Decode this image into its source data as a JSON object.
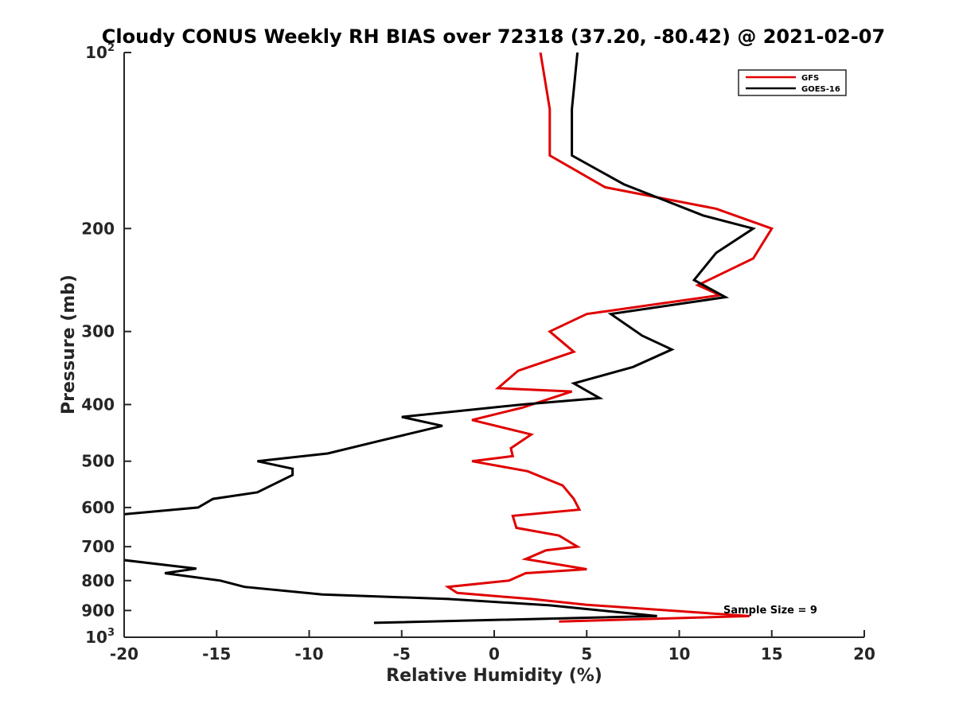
{
  "chart_data": {
    "type": "line",
    "title": "Cloudy CONUS Weekly RH BIAS over 72318 (37.20, -80.42) @ 2021-02-07",
    "xlabel": "Relative Humidity (%)",
    "ylabel": "Pressure (mb)",
    "xlim": [
      -20,
      20
    ],
    "ylim": [
      100,
      1000
    ],
    "yscale": "log",
    "yreverse": true,
    "x_ticks": [
      {
        "value": -20,
        "label": "-20"
      },
      {
        "value": -15,
        "label": "-15"
      },
      {
        "value": -10,
        "label": "-10"
      },
      {
        "value": -5,
        "label": "-5"
      },
      {
        "value": 0,
        "label": "0"
      },
      {
        "value": 5,
        "label": "5"
      },
      {
        "value": 10,
        "label": "10"
      },
      {
        "value": 15,
        "label": "15"
      },
      {
        "value": 20,
        "label": "20"
      }
    ],
    "y_ticks": [
      {
        "value": 100,
        "base": "10",
        "exp": "2"
      },
      {
        "value": 200,
        "base": "200",
        "exp": ""
      },
      {
        "value": 300,
        "base": "300",
        "exp": ""
      },
      {
        "value": 400,
        "base": "400",
        "exp": ""
      },
      {
        "value": 500,
        "base": "500",
        "exp": ""
      },
      {
        "value": 600,
        "base": "600",
        "exp": ""
      },
      {
        "value": 700,
        "base": "700",
        "exp": ""
      },
      {
        "value": 800,
        "base": "800",
        "exp": ""
      },
      {
        "value": 900,
        "base": "900",
        "exp": ""
      },
      {
        "value": 1000,
        "base": "10",
        "exp": "3"
      }
    ],
    "series": [
      {
        "name": "GFS",
        "color": "#e00000",
        "points": [
          {
            "x": 2.5,
            "p": 100
          },
          {
            "x": 3.0,
            "p": 125
          },
          {
            "x": 3.0,
            "p": 150
          },
          {
            "x": 6.0,
            "p": 170
          },
          {
            "x": 12.0,
            "p": 185
          },
          {
            "x": 15.0,
            "p": 200
          },
          {
            "x": 14.0,
            "p": 225
          },
          {
            "x": 11.0,
            "p": 250
          },
          {
            "x": 12.2,
            "p": 260
          },
          {
            "x": 5.0,
            "p": 280
          },
          {
            "x": 3.0,
            "p": 300
          },
          {
            "x": 4.3,
            "p": 325
          },
          {
            "x": 1.3,
            "p": 350
          },
          {
            "x": 0.2,
            "p": 375
          },
          {
            "x": 4.2,
            "p": 380
          },
          {
            "x": 1.5,
            "p": 405
          },
          {
            "x": -1.2,
            "p": 425
          },
          {
            "x": 2.0,
            "p": 450
          },
          {
            "x": 0.9,
            "p": 475
          },
          {
            "x": 1.0,
            "p": 490
          },
          {
            "x": -1.2,
            "p": 500
          },
          {
            "x": 1.8,
            "p": 520
          },
          {
            "x": 3.7,
            "p": 550
          },
          {
            "x": 4.3,
            "p": 580
          },
          {
            "x": 4.6,
            "p": 605
          },
          {
            "x": 1.0,
            "p": 620
          },
          {
            "x": 1.2,
            "p": 650
          },
          {
            "x": 3.5,
            "p": 670
          },
          {
            "x": 4.5,
            "p": 700
          },
          {
            "x": 2.8,
            "p": 710
          },
          {
            "x": 1.7,
            "p": 735
          },
          {
            "x": 5.0,
            "p": 765
          },
          {
            "x": 1.7,
            "p": 777
          },
          {
            "x": 0.8,
            "p": 800
          },
          {
            "x": -2.5,
            "p": 820
          },
          {
            "x": -2.0,
            "p": 840
          },
          {
            "x": 2.0,
            "p": 860
          },
          {
            "x": 5.0,
            "p": 880
          },
          {
            "x": 13.8,
            "p": 920
          },
          {
            "x": 3.5,
            "p": 940
          }
        ]
      },
      {
        "name": "GOES-16",
        "color": "#000000",
        "points": [
          {
            "x": 4.5,
            "p": 100
          },
          {
            "x": 4.2,
            "p": 125
          },
          {
            "x": 4.2,
            "p": 150
          },
          {
            "x": 7.0,
            "p": 168
          },
          {
            "x": 11.3,
            "p": 190
          },
          {
            "x": 14.0,
            "p": 200
          },
          {
            "x": 12.0,
            "p": 220
          },
          {
            "x": 10.8,
            "p": 245
          },
          {
            "x": 12.5,
            "p": 262
          },
          {
            "x": 6.3,
            "p": 280
          },
          {
            "x": 8.0,
            "p": 305
          },
          {
            "x": 9.6,
            "p": 322
          },
          {
            "x": 7.5,
            "p": 345
          },
          {
            "x": 4.3,
            "p": 368
          },
          {
            "x": 5.7,
            "p": 390
          },
          {
            "x": 1.5,
            "p": 400
          },
          {
            "x": -5.0,
            "p": 420
          },
          {
            "x": -2.8,
            "p": 435
          },
          {
            "x": -6.0,
            "p": 460
          },
          {
            "x": -9.0,
            "p": 485
          },
          {
            "x": -12.8,
            "p": 500
          },
          {
            "x": -10.9,
            "p": 515
          },
          {
            "x": -10.9,
            "p": 528
          },
          {
            "x": -12.8,
            "p": 565
          },
          {
            "x": -15.2,
            "p": 580
          },
          {
            "x": -16.0,
            "p": 600
          },
          {
            "x": -20.5,
            "p": 618
          },
          {
            "x": -20.5,
            "p": 735
          },
          {
            "x": -16.1,
            "p": 763
          },
          {
            "x": -17.8,
            "p": 777
          },
          {
            "x": -14.8,
            "p": 800
          },
          {
            "x": -13.5,
            "p": 820
          },
          {
            "x": -9.3,
            "p": 845
          },
          {
            "x": -2.5,
            "p": 860
          },
          {
            "x": 3.0,
            "p": 882
          },
          {
            "x": 8.8,
            "p": 920
          },
          {
            "x": -6.5,
            "p": 945
          }
        ]
      }
    ],
    "legend": {
      "position": "top-right",
      "entries": [
        "GFS",
        "GOES-16"
      ]
    },
    "annotation": "Sample Size = 9",
    "grid": false
  }
}
